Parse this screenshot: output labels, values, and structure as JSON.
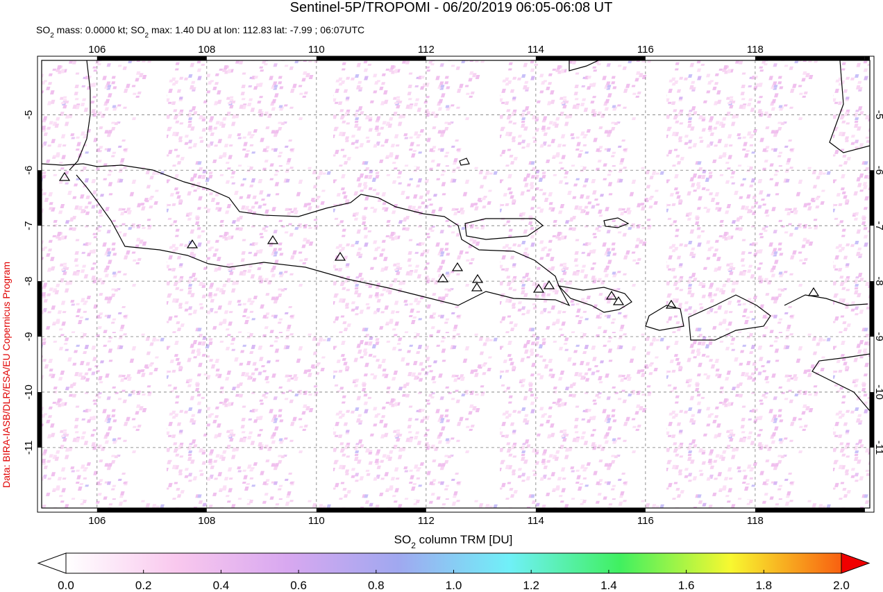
{
  "header": {
    "title": "Sentinel-5P/TROPOMI - 06/20/2019 06:05-06:08 UT",
    "subtitle": [
      "SO",
      "2",
      " mass: 0.0000 kt; SO",
      "2",
      " max: 1.40 DU at lon: 112.83 lat: -7.99 ; 06:07UTC"
    ]
  },
  "credit": "Data: BIRA-IASB/DLR/ESA/EU Copernicus Program",
  "map": {
    "xlim": [
      104.99,
      120.09
    ],
    "ylim": [
      -12.09,
      -4.02
    ],
    "xticks": [
      106,
      108,
      110,
      112,
      114,
      116,
      118
    ],
    "yticks": [
      -5,
      -6,
      -7,
      -8,
      -9,
      -10,
      -11
    ]
  },
  "colorbar": {
    "label": [
      "SO",
      "2",
      " column TRM [DU]"
    ],
    "lim": [
      0,
      2
    ],
    "colors": [
      "#ffffff",
      "#f9c8ee",
      "#d8a8f0",
      "#a0a8f0",
      "#70f0f8",
      "#40f060",
      "#f8f830",
      "#f86010"
    ],
    "under_color": "#ffffff",
    "over_color": "#f00000",
    "ticks": [
      {
        "value": 0,
        "label": "0.0"
      },
      {
        "value": 0.2,
        "label": "0.2"
      },
      {
        "value": 0.4,
        "label": "0.4"
      },
      {
        "value": 0.6,
        "label": "0.6"
      },
      {
        "value": 0.8,
        "label": "0.8"
      },
      {
        "value": 1,
        "label": "1.0"
      },
      {
        "value": 1.2,
        "label": "1.2"
      },
      {
        "value": 1.4,
        "label": "1.4"
      },
      {
        "value": 1.6,
        "label": "1.6"
      },
      {
        "value": 1.8,
        "label": "1.8"
      },
      {
        "value": 2,
        "label": "2.0"
      }
    ]
  }
}
